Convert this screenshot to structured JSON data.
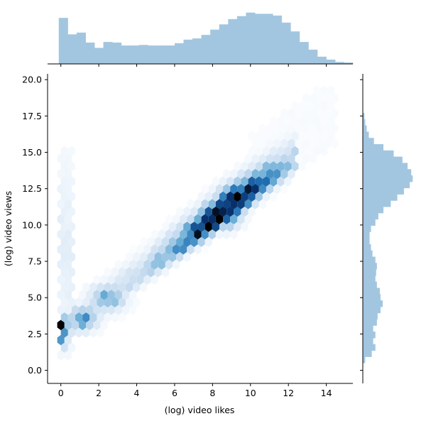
{
  "chart_data": {
    "type": "hexbin",
    "title": "",
    "xlabel": "(log) video likes",
    "ylabel": "(log) video views",
    "xlim": [
      -0.7,
      15.4
    ],
    "ylim": [
      -0.9,
      20.4
    ],
    "x_ticks": [
      0,
      2,
      4,
      6,
      8,
      10,
      12,
      14
    ],
    "y_ticks": [
      0.0,
      2.5,
      5.0,
      7.5,
      10.0,
      12.5,
      15.0,
      17.5,
      20.0
    ],
    "x_tick_labels": [
      "0",
      "2",
      "4",
      "6",
      "8",
      "10",
      "12",
      "14"
    ],
    "y_tick_labels": [
      "0.0",
      "2.5",
      "5.0",
      "7.5",
      "10.0",
      "12.5",
      "15.0",
      "17.5",
      "20.0"
    ],
    "colormap": [
      "#ffffff",
      "#c6dbef",
      "#6baed6",
      "#2171b5",
      "#08306b",
      "#000000"
    ],
    "histogram_color": "#a3c6e0",
    "density_regions": [
      {
        "x_range": [
          0,
          0.6
        ],
        "y_range": [
          1,
          15
        ],
        "intensity": 0.15
      },
      {
        "x_range": [
          0,
          0.5
        ],
        "y_range": [
          1.8,
          4
        ],
        "intensity": 0.6
      },
      {
        "x_range": [
          0,
          0.3
        ],
        "y_range": [
          2.7,
          3.1
        ],
        "intensity": 1.0
      },
      {
        "x_range": [
          0.5,
          4
        ],
        "y_range": [
          1,
          8
        ],
        "intensity": 0.35
      },
      {
        "x_range": [
          2,
          6
        ],
        "y_range": [
          4,
          11
        ],
        "intensity": 0.35
      },
      {
        "x_range": [
          6,
          10.5
        ],
        "y_range": [
          8,
          15
        ],
        "intensity": 0.55
      },
      {
        "x_range": [
          8.5,
          10.2
        ],
        "y_range": [
          11.2,
          13
        ],
        "intensity": 1.0
      },
      {
        "x_range": [
          10,
          14
        ],
        "y_range": [
          13,
          19
        ],
        "intensity": 0.08
      }
    ],
    "x_marginal": {
      "bin_edges_start": -0.1,
      "bin_width": 0.47,
      "counts": [
        78,
        50,
        53,
        36,
        27,
        37,
        36,
        31,
        31,
        32,
        31,
        31,
        31,
        35,
        41,
        43,
        49,
        58,
        67,
        76,
        81,
        87,
        85,
        85,
        82,
        70,
        55,
        37,
        24,
        12,
        7,
        3,
        2
      ]
    },
    "y_marginal": {
      "bin_edges_start": 0.5,
      "bin_width": 0.43,
      "counts": [
        3,
        12,
        17,
        14,
        17,
        14,
        19,
        20,
        24,
        27,
        24,
        23,
        19,
        17,
        18,
        19,
        17,
        13,
        11,
        9,
        9,
        11,
        17,
        21,
        28,
        38,
        47,
        56,
        64,
        68,
        66,
        61,
        54,
        42,
        28,
        15,
        8,
        5,
        3,
        2
      ]
    }
  }
}
